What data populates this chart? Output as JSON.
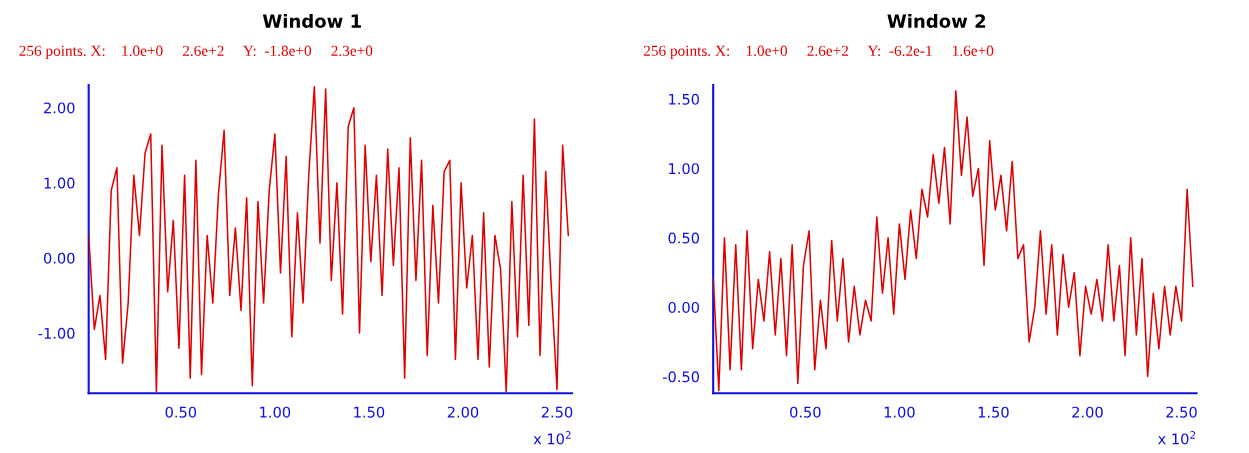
{
  "chart_data": [
    {
      "type": "line",
      "title": "Window 1",
      "subtitle": "256 points. X:    1.0e+0     2.6e+2     Y:  -1.8e+0     2.3e+0",
      "annotations": [
        "x 10$^{2}$"
      ],
      "color": "#e00000",
      "grid": false,
      "legend": false,
      "x": [
        0.01,
        0.04,
        0.07,
        0.1,
        0.13,
        0.16,
        0.19,
        0.22,
        0.25,
        0.28,
        0.31,
        0.34,
        0.37,
        0.4,
        0.43,
        0.46,
        0.49,
        0.52,
        0.55,
        0.58,
        0.61,
        0.64,
        0.67,
        0.7,
        0.73,
        0.76,
        0.79,
        0.82,
        0.85,
        0.88,
        0.91,
        0.94,
        0.97,
        1.0,
        1.03,
        1.06,
        1.09,
        1.12,
        1.15,
        1.18,
        1.21,
        1.24,
        1.27,
        1.3,
        1.33,
        1.36,
        1.39,
        1.42,
        1.45,
        1.48,
        1.51,
        1.54,
        1.57,
        1.6,
        1.63,
        1.66,
        1.69,
        1.72,
        1.75,
        1.78,
        1.81,
        1.84,
        1.87,
        1.9,
        1.93,
        1.96,
        1.99,
        2.02,
        2.05,
        2.08,
        2.11,
        2.14,
        2.17,
        2.2,
        2.23,
        2.26,
        2.29,
        2.32,
        2.35,
        2.38,
        2.41,
        2.44,
        2.47,
        2.5,
        2.53,
        2.56
      ],
      "values": [
        0.3,
        -0.95,
        -0.5,
        -1.35,
        0.9,
        1.2,
        -1.4,
        -0.6,
        1.1,
        0.3,
        1.4,
        1.65,
        -1.78,
        1.5,
        -0.45,
        0.5,
        -1.2,
        1.1,
        -1.6,
        1.3,
        -1.55,
        0.3,
        -0.6,
        0.85,
        1.7,
        -0.5,
        0.4,
        -0.7,
        0.8,
        -1.7,
        0.75,
        -0.6,
        0.9,
        1.65,
        -0.2,
        1.35,
        -1.05,
        0.6,
        -0.6,
        1.1,
        2.28,
        0.2,
        2.25,
        -0.3,
        1.0,
        -0.75,
        1.75,
        2.0,
        -1.0,
        1.5,
        -0.05,
        1.1,
        -0.5,
        1.45,
        -0.1,
        1.2,
        -1.6,
        1.6,
        -0.3,
        1.3,
        -1.3,
        0.7,
        -0.6,
        1.15,
        1.3,
        -1.35,
        1.0,
        -0.4,
        0.3,
        -1.35,
        0.6,
        -1.45,
        0.3,
        -0.15,
        -1.78,
        0.75,
        -1.05,
        1.1,
        -0.9,
        1.85,
        -1.3,
        1.15,
        -0.4,
        -1.75,
        1.5,
        0.3
      ],
      "xlim": [
        0.01,
        2.58
      ],
      "ylim": [
        -1.8,
        2.3
      ],
      "xticks": [
        {
          "value": 0.5,
          "label": "0.50"
        },
        {
          "value": 1.0,
          "label": "1.00"
        },
        {
          "value": 1.5,
          "label": "1.50"
        },
        {
          "value": 2.0,
          "label": "2.00"
        },
        {
          "value": 2.5,
          "label": "2.50"
        }
      ],
      "yticks": [
        {
          "value": -1.0,
          "label": "-1.00"
        },
        {
          "value": 0.0,
          "label": "0.00"
        },
        {
          "value": 1.0,
          "label": "1.00"
        },
        {
          "value": 2.0,
          "label": "2.00"
        }
      ]
    },
    {
      "type": "line",
      "title": "Window 2",
      "subtitle": "256 points. X:    1.0e+0     2.6e+2     Y:  -6.2e-1     1.6e+0",
      "annotations": [
        "x 10$^{2}$"
      ],
      "color": "#e00000",
      "grid": false,
      "legend": false,
      "x": [
        0.01,
        0.04,
        0.07,
        0.1,
        0.13,
        0.16,
        0.19,
        0.22,
        0.25,
        0.28,
        0.31,
        0.34,
        0.37,
        0.4,
        0.43,
        0.46,
        0.49,
        0.52,
        0.55,
        0.58,
        0.61,
        0.64,
        0.67,
        0.7,
        0.73,
        0.76,
        0.79,
        0.82,
        0.85,
        0.88,
        0.91,
        0.94,
        0.97,
        1.0,
        1.03,
        1.06,
        1.09,
        1.12,
        1.15,
        1.18,
        1.21,
        1.24,
        1.27,
        1.3,
        1.33,
        1.36,
        1.39,
        1.42,
        1.45,
        1.48,
        1.51,
        1.54,
        1.57,
        1.6,
        1.63,
        1.66,
        1.69,
        1.72,
        1.75,
        1.78,
        1.81,
        1.84,
        1.87,
        1.9,
        1.93,
        1.96,
        1.99,
        2.02,
        2.05,
        2.08,
        2.11,
        2.14,
        2.17,
        2.2,
        2.23,
        2.26,
        2.29,
        2.32,
        2.35,
        2.38,
        2.41,
        2.44,
        2.47,
        2.5,
        2.53,
        2.56
      ],
      "values": [
        0.22,
        -0.6,
        0.5,
        -0.45,
        0.45,
        -0.45,
        0.55,
        -0.3,
        0.2,
        -0.1,
        0.4,
        -0.2,
        0.35,
        -0.35,
        0.45,
        -0.55,
        0.3,
        0.55,
        -0.45,
        0.05,
        -0.3,
        0.48,
        -0.1,
        0.35,
        -0.25,
        0.15,
        -0.2,
        0.05,
        -0.1,
        0.65,
        0.1,
        0.5,
        -0.05,
        0.6,
        0.2,
        0.7,
        0.35,
        0.85,
        0.65,
        1.1,
        0.75,
        1.15,
        0.6,
        1.56,
        0.95,
        1.37,
        0.8,
        1.0,
        0.3,
        1.2,
        0.7,
        0.95,
        0.55,
        1.05,
        0.35,
        0.45,
        -0.25,
        0.0,
        0.55,
        -0.05,
        0.45,
        -0.2,
        0.38,
        0.0,
        0.25,
        -0.35,
        0.15,
        -0.05,
        0.2,
        -0.1,
        0.45,
        -0.1,
        0.3,
        -0.35,
        0.5,
        -0.2,
        0.35,
        -0.5,
        0.1,
        -0.3,
        0.15,
        -0.2,
        0.15,
        -0.1,
        0.85,
        0.15
      ],
      "xlim": [
        0.01,
        2.58
      ],
      "ylim": [
        -0.62,
        1.6
      ],
      "xticks": [
        {
          "value": 0.5,
          "label": "0.50"
        },
        {
          "value": 1.0,
          "label": "1.00"
        },
        {
          "value": 1.5,
          "label": "1.50"
        },
        {
          "value": 2.0,
          "label": "2.00"
        },
        {
          "value": 2.5,
          "label": "2.50"
        }
      ],
      "yticks": [
        {
          "value": -0.5,
          "label": "-0.50"
        },
        {
          "value": 0.0,
          "label": "0.00"
        },
        {
          "value": 0.5,
          "label": "0.50"
        },
        {
          "value": 1.0,
          "label": "1.00"
        },
        {
          "value": 1.5,
          "label": "1.50"
        }
      ]
    }
  ]
}
